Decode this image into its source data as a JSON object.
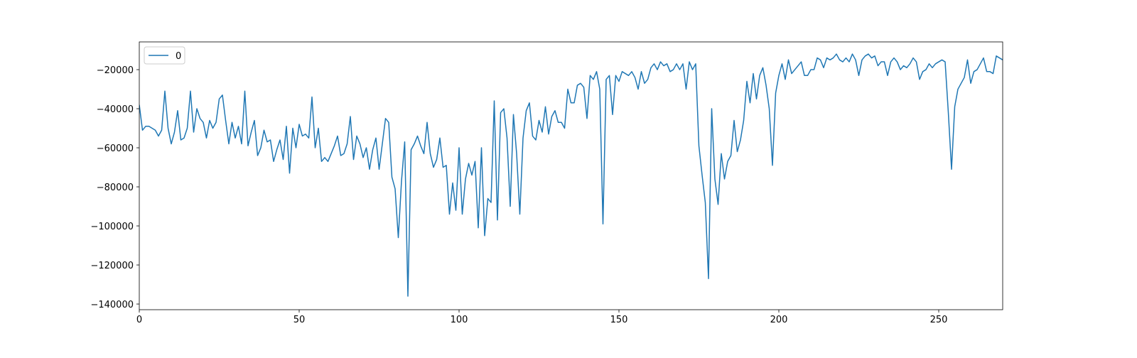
{
  "chart_data": {
    "type": "line",
    "x": [
      0,
      1,
      2,
      3,
      4,
      5,
      6,
      7,
      8,
      9,
      10,
      11,
      12,
      13,
      14,
      15,
      16,
      17,
      18,
      19,
      20,
      21,
      22,
      23,
      24,
      25,
      26,
      27,
      28,
      29,
      30,
      31,
      32,
      33,
      34,
      35,
      36,
      37,
      38,
      39,
      40,
      41,
      42,
      43,
      44,
      45,
      46,
      47,
      48,
      49,
      50,
      51,
      52,
      53,
      54,
      55,
      56,
      57,
      58,
      59,
      60,
      61,
      62,
      63,
      64,
      65,
      66,
      67,
      68,
      69,
      70,
      71,
      72,
      73,
      74,
      75,
      76,
      77,
      78,
      79,
      80,
      81,
      82,
      83,
      84,
      85,
      86,
      87,
      88,
      89,
      90,
      91,
      92,
      93,
      94,
      95,
      96,
      97,
      98,
      99,
      100,
      101,
      102,
      103,
      104,
      105,
      106,
      107,
      108,
      109,
      110,
      111,
      112,
      113,
      114,
      115,
      116,
      117,
      118,
      119,
      120,
      121,
      122,
      123,
      124,
      125,
      126,
      127,
      128,
      129,
      130,
      131,
      132,
      133,
      134,
      135,
      136,
      137,
      138,
      139,
      140,
      141,
      142,
      143,
      144,
      145,
      146,
      147,
      148,
      149,
      150,
      151,
      152,
      153,
      154,
      155,
      156,
      157,
      158,
      159,
      160,
      161,
      162,
      163,
      164,
      165,
      166,
      167,
      168,
      169,
      170,
      171,
      172,
      173,
      174,
      175,
      176,
      177,
      178,
      179,
      180,
      181,
      182,
      183,
      184,
      185,
      186,
      187,
      188,
      189,
      190,
      191,
      192,
      193,
      194,
      195,
      196,
      197,
      198,
      199,
      200,
      201,
      202,
      203,
      204,
      205,
      206,
      207,
      208,
      209,
      210,
      211,
      212,
      213,
      214,
      215,
      216,
      217,
      218,
      219,
      220,
      221,
      222,
      223,
      224,
      225,
      226,
      227,
      228,
      229,
      230,
      231,
      232,
      233,
      234,
      235,
      236,
      237,
      238,
      239,
      240,
      241,
      242,
      243,
      244,
      245,
      246,
      247,
      248,
      249,
      250,
      251,
      252,
      253,
      254,
      255,
      256,
      257,
      258,
      259,
      260,
      261,
      262,
      263,
      264,
      265,
      266,
      267,
      268,
      269,
      270
    ],
    "series": [
      {
        "name": "0",
        "color": "#1f77b4",
        "values": [
          -38000,
          -51000,
          -49000,
          -49000,
          -50000,
          -51000,
          -54000,
          -51000,
          -31000,
          -50000,
          -58000,
          -52000,
          -41000,
          -56000,
          -55000,
          -50000,
          -31000,
          -52000,
          -40000,
          -45000,
          -47000,
          -55000,
          -46000,
          -50000,
          -47000,
          -35000,
          -33000,
          -46000,
          -58000,
          -47000,
          -55000,
          -49000,
          -58000,
          -31000,
          -59000,
          -52000,
          -46000,
          -64000,
          -60000,
          -51000,
          -57000,
          -56000,
          -67000,
          -61000,
          -56000,
          -66000,
          -49000,
          -73000,
          -50000,
          -60000,
          -48000,
          -54000,
          -53000,
          -55000,
          -34000,
          -60000,
          -50000,
          -67000,
          -65000,
          -67000,
          -63000,
          -59000,
          -54000,
          -64000,
          -63000,
          -58000,
          -44000,
          -66000,
          -54000,
          -58000,
          -65000,
          -60000,
          -71000,
          -61000,
          -55000,
          -71000,
          -58000,
          -45000,
          -47000,
          -75000,
          -81000,
          -106000,
          -77000,
          -57000,
          -136000,
          -61000,
          -58000,
          -54000,
          -59000,
          -63000,
          -47000,
          -63000,
          -70000,
          -66000,
          -55000,
          -70000,
          -69000,
          -94000,
          -78000,
          -92000,
          -60000,
          -94000,
          -76000,
          -68000,
          -74000,
          -67000,
          -101000,
          -60000,
          -105000,
          -86000,
          -88000,
          -36000,
          -97000,
          -42000,
          -40000,
          -55000,
          -90000,
          -43000,
          -63000,
          -94000,
          -55000,
          -41000,
          -37000,
          -54000,
          -56000,
          -46000,
          -52000,
          -39000,
          -53000,
          -44000,
          -41000,
          -47000,
          -47000,
          -50000,
          -30000,
          -37000,
          -37000,
          -28000,
          -27000,
          -29000,
          -45000,
          -23000,
          -25000,
          -21000,
          -30000,
          -99000,
          -25000,
          -23000,
          -43000,
          -23000,
          -26000,
          -21000,
          -22000,
          -23000,
          -21000,
          -24000,
          -30000,
          -21000,
          -27000,
          -25000,
          -19000,
          -17000,
          -20000,
          -16000,
          -18000,
          -17000,
          -21000,
          -20000,
          -17000,
          -20000,
          -17000,
          -30000,
          -16000,
          -20000,
          -17000,
          -59000,
          -74000,
          -88000,
          -127000,
          -40000,
          -76000,
          -89000,
          -63000,
          -76000,
          -67000,
          -64000,
          -46000,
          -62000,
          -56000,
          -46000,
          -26000,
          -37000,
          -22000,
          -35000,
          -23000,
          -19000,
          -28000,
          -40000,
          -69000,
          -32000,
          -23000,
          -17000,
          -25000,
          -15000,
          -22000,
          -20000,
          -18000,
          -16000,
          -23000,
          -23000,
          -20000,
          -20000,
          -14000,
          -15000,
          -19000,
          -14000,
          -15000,
          -14000,
          -12000,
          -15000,
          -16000,
          -14000,
          -16000,
          -12000,
          -15000,
          -23000,
          -15000,
          -13000,
          -12000,
          -14000,
          -13000,
          -18000,
          -16000,
          -16000,
          -23000,
          -16000,
          -14000,
          -16000,
          -20000,
          -18000,
          -19000,
          -17000,
          -14000,
          -16000,
          -25000,
          -21000,
          -20000,
          -17000,
          -19000,
          -17000,
          -16000,
          -15000,
          -16000,
          -42000,
          -71000,
          -39000,
          -30000,
          -27000,
          -24000,
          -15000,
          -27000,
          -21000,
          -20000,
          -17000,
          -14000,
          -21000,
          -21000,
          -22000,
          -13000,
          -14000,
          -15000
        ]
      }
    ],
    "xlim": [
      0,
      270
    ],
    "xticks": [
      0,
      50,
      100,
      150,
      200,
      250
    ],
    "ylim": [
      -142900,
      -5800
    ],
    "yticks": [
      {
        "value": -140000,
        "label": "−140000"
      },
      {
        "value": -120000,
        "label": "−120000"
      },
      {
        "value": -100000,
        "label": "−100000"
      },
      {
        "value": -80000,
        "label": "−80000"
      },
      {
        "value": -60000,
        "label": "−60000"
      },
      {
        "value": -40000,
        "label": "−40000"
      },
      {
        "value": -20000,
        "label": "−20000"
      }
    ],
    "legend": "upper left",
    "grid": false
  }
}
